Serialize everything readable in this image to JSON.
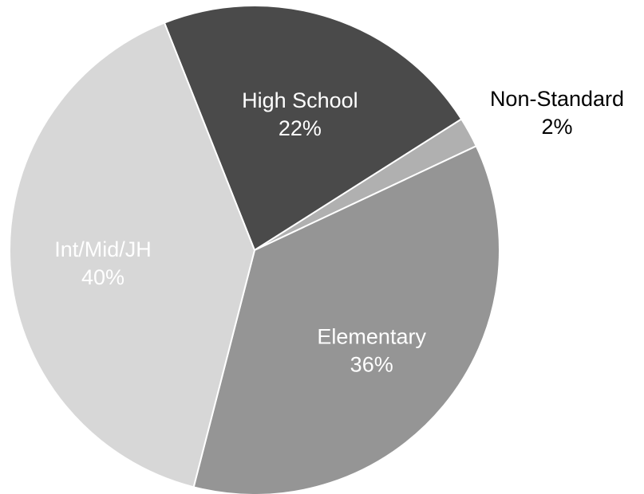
{
  "chart_data": {
    "type": "pie",
    "legend": "none",
    "slices": [
      {
        "name": "High School",
        "label": "High School",
        "value": 22,
        "pct_label": "22%",
        "color": "#4a4a4a",
        "text_color": "#ffffff",
        "label_position": "inside"
      },
      {
        "name": "Non-Standard",
        "label": "Non-Standard",
        "value": 2,
        "pct_label": "2%",
        "color": "#b0b0b0",
        "text_color": "#000000",
        "label_position": "outside"
      },
      {
        "name": "Elementary",
        "label": "Elementary",
        "value": 36,
        "pct_label": "36%",
        "color": "#959595",
        "text_color": "#ffffff",
        "label_position": "inside"
      },
      {
        "name": "Int/Mid/JH",
        "label": "Int/Mid/JH",
        "value": 40,
        "pct_label": "40%",
        "color": "#d7d7d7",
        "text_color": "#ffffff",
        "label_position": "inside"
      }
    ]
  }
}
